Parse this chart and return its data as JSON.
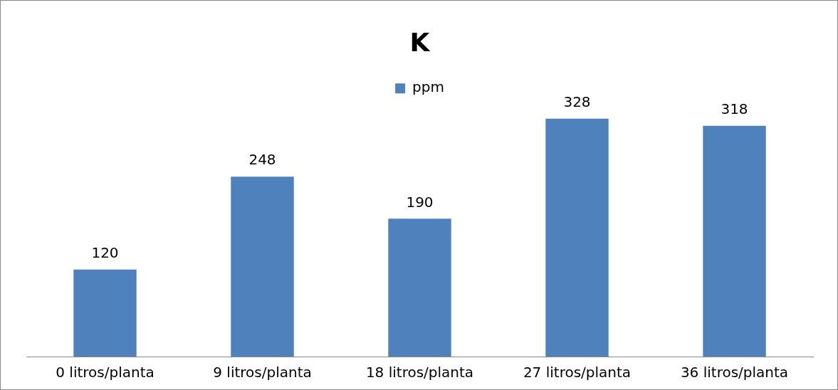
{
  "chart_data": {
    "type": "bar",
    "title": "K",
    "categories": [
      "0 litros/planta",
      "9 litros/planta",
      "18 litros/planta",
      "27 litros/planta",
      "36 litros/planta"
    ],
    "series": [
      {
        "name": "ppm",
        "color": "#4f81bd",
        "values": [
          120,
          248,
          190,
          328,
          318
        ]
      }
    ],
    "data_labels": true,
    "legend": "top",
    "grid": false,
    "tick_labels": "x"
  }
}
